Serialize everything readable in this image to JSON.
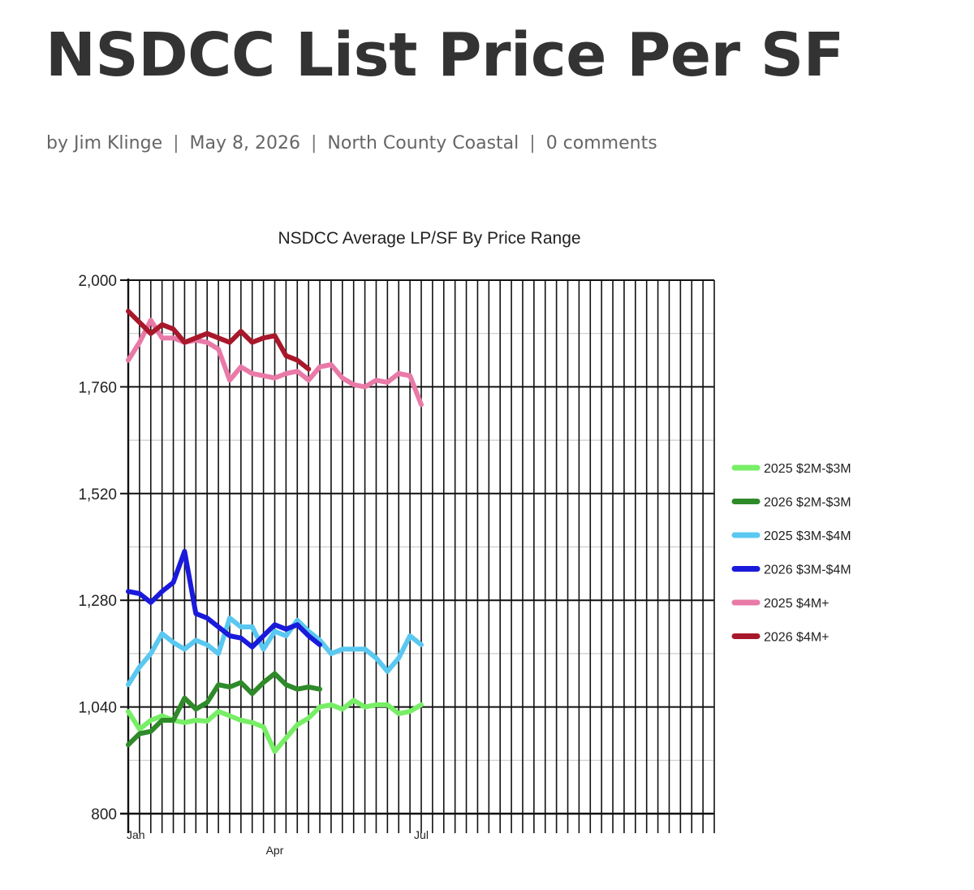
{
  "post": {
    "title": "NSDCC List Price Per SF",
    "meta": {
      "by_label": "by",
      "author": "Jim Klinge",
      "date": "May 8, 2026",
      "category": "North County Coastal",
      "comments": "0 comments",
      "separator": "|"
    }
  },
  "chart_data": {
    "type": "line",
    "title": "NSDCC Average LP/SF By Price Range",
    "xlabel": "",
    "ylabel": "",
    "ylim": [
      800,
      2000
    ],
    "y_ticks": [
      800,
      1040,
      1280,
      1520,
      1760,
      2000
    ],
    "y_tick_labels": [
      "800",
      "1,040",
      "1,280",
      "1,520",
      "1,760",
      "2,000"
    ],
    "x_range_weeks": [
      0,
      52
    ],
    "x_tick_labels": [
      {
        "label": "Jan",
        "week": 0
      },
      {
        "label": "Apr",
        "week": 13
      },
      {
        "label": "Jul",
        "week": 26
      }
    ],
    "grid": true,
    "legend_position": "right",
    "series": [
      {
        "name": "2025 $2M-$3M",
        "color": "#77ee66",
        "values": [
          1030,
          990,
          1010,
          1020,
          1010,
          1005,
          1010,
          1008,
          1030,
          1020,
          1010,
          1005,
          995,
          940,
          970,
          1000,
          1015,
          1040,
          1045,
          1035,
          1055,
          1040,
          1045,
          1045,
          1025,
          1030,
          1045
        ]
      },
      {
        "name": "2026 $2M-$3M",
        "color": "#2f8a2a",
        "values": [
          955,
          980,
          985,
          1010,
          1010,
          1060,
          1035,
          1050,
          1090,
          1085,
          1095,
          1070,
          1095,
          1115,
          1090,
          1080,
          1085,
          1080
        ]
      },
      {
        "name": "2025 $3M-$4M",
        "color": "#5ac8f0",
        "values": [
          1090,
          1130,
          1160,
          1205,
          1185,
          1170,
          1190,
          1180,
          1160,
          1240,
          1220,
          1220,
          1170,
          1210,
          1200,
          1235,
          1210,
          1190,
          1160,
          1170,
          1170,
          1170,
          1150,
          1120,
          1150,
          1200,
          1180
        ]
      },
      {
        "name": "2026 $3M-$4M",
        "color": "#1a1adb",
        "values": [
          1300,
          1295,
          1275,
          1300,
          1320,
          1390,
          1250,
          1240,
          1220,
          1200,
          1195,
          1175,
          1200,
          1225,
          1215,
          1225,
          1200,
          1180
        ]
      },
      {
        "name": "2025 $4M+",
        "color": "#e97aa8",
        "values": [
          1820,
          1860,
          1910,
          1870,
          1870,
          1860,
          1865,
          1860,
          1845,
          1775,
          1805,
          1790,
          1785,
          1780,
          1790,
          1795,
          1775,
          1805,
          1810,
          1780,
          1765,
          1760,
          1775,
          1770,
          1790,
          1785,
          1720
        ]
      },
      {
        "name": "2026 $4M+",
        "color": "#a8182b",
        "values": [
          1930,
          1905,
          1880,
          1900,
          1890,
          1860,
          1870,
          1880,
          1870,
          1860,
          1885,
          1860,
          1870,
          1875,
          1830,
          1820,
          1800
        ]
      }
    ]
  }
}
